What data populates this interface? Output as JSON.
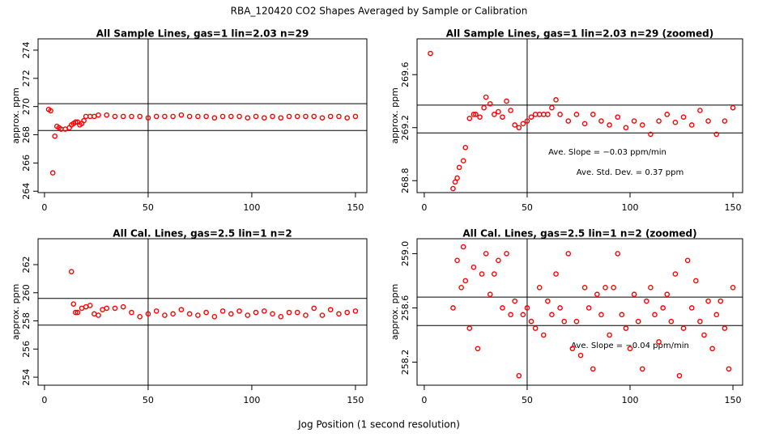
{
  "title": "RBA_120420  CO2 Shapes Averaged by Sample or Calibration",
  "x_label": "Jog Position (1 second resolution)",
  "chart_data": [
    {
      "type": "scatter",
      "title": "All Sample Lines, gas=1 lin=2.03 n=29",
      "y_label": "approx. ppm",
      "color": "#ff0000",
      "x": [
        2,
        3,
        4,
        5,
        6,
        7,
        8,
        10,
        12,
        13,
        14,
        15,
        16,
        17,
        18,
        19,
        20,
        22,
        24,
        26,
        30,
        34,
        38,
        42,
        46,
        50,
        54,
        58,
        62,
        66,
        70,
        74,
        78,
        82,
        86,
        90,
        94,
        98,
        102,
        106,
        110,
        114,
        118,
        122,
        126,
        130,
        134,
        138,
        142,
        146,
        150
      ],
      "values": [
        269.8,
        269.7,
        265.3,
        267.9,
        268.6,
        268.5,
        268.4,
        268.4,
        268.5,
        268.7,
        268.8,
        268.9,
        268.9,
        268.7,
        268.8,
        269.0,
        269.3,
        269.3,
        269.3,
        269.4,
        269.4,
        269.3,
        269.3,
        269.3,
        269.3,
        269.2,
        269.3,
        269.3,
        269.3,
        269.4,
        269.3,
        269.3,
        269.3,
        269.2,
        269.3,
        269.3,
        269.3,
        269.2,
        269.3,
        269.2,
        269.3,
        269.2,
        269.3,
        269.3,
        269.3,
        269.3,
        269.2,
        269.3,
        269.3,
        269.2,
        269.3
      ],
      "xlim": [
        -3.1,
        155.5
      ],
      "ylim": [
        263.9,
        274.8
      ],
      "xticks": [
        0,
        50,
        100,
        150
      ],
      "yticks": [
        264,
        266,
        268,
        270,
        272,
        274
      ],
      "hlines": [
        270.2,
        268.3
      ],
      "vlines": [
        50
      ]
    },
    {
      "type": "scatter",
      "title": "All Sample Lines, gas=1 lin=2.03 n=29 (zoomed)",
      "y_label": "approx. ppm",
      "color": "#ff0000",
      "x": [
        3,
        14,
        15,
        16,
        17,
        19,
        20,
        22,
        24,
        25,
        27,
        29,
        30,
        32,
        34,
        36,
        38,
        40,
        42,
        44,
        46,
        48,
        50,
        52,
        54,
        56,
        58,
        60,
        62,
        64,
        66,
        70,
        74,
        78,
        82,
        86,
        90,
        94,
        98,
        102,
        106,
        110,
        114,
        118,
        122,
        126,
        130,
        134,
        138,
        142,
        146,
        150
      ],
      "values": [
        269.76,
        268.74,
        268.79,
        268.82,
        268.9,
        268.95,
        269.05,
        269.27,
        269.3,
        269.3,
        269.28,
        269.35,
        269.43,
        269.38,
        269.3,
        269.32,
        269.28,
        269.4,
        269.33,
        269.22,
        269.2,
        269.23,
        269.25,
        269.28,
        269.3,
        269.3,
        269.3,
        269.3,
        269.35,
        269.41,
        269.3,
        269.25,
        269.3,
        269.23,
        269.3,
        269.25,
        269.22,
        269.28,
        269.2,
        269.25,
        269.22,
        269.15,
        269.25,
        269.3,
        269.24,
        269.28,
        269.22,
        269.33,
        269.25,
        269.15,
        269.25,
        269.35
      ],
      "xlim": [
        -3.5,
        154.7
      ],
      "ylim": [
        268.71,
        269.87
      ],
      "xticks": [
        0,
        50,
        100,
        150
      ],
      "yticks": [
        268.8,
        269.2,
        269.6
      ],
      "hlines": [
        269.37,
        269.16
      ],
      "vlines": [
        50
      ],
      "annotations": [
        "Ave. Slope =  −0.03  ppm/min",
        "Ave. Std. Dev. =  0.37  ppm"
      ]
    },
    {
      "type": "scatter",
      "title": "All Cal. Lines, gas=2.5 lin=1 n=2",
      "y_label": "approx. ppm",
      "color": "#ff0000",
      "x": [
        13,
        14,
        15,
        16,
        18,
        20,
        22,
        24,
        26,
        28,
        30,
        34,
        38,
        42,
        46,
        50,
        54,
        58,
        62,
        66,
        70,
        74,
        78,
        82,
        86,
        90,
        94,
        98,
        102,
        106,
        110,
        114,
        118,
        122,
        126,
        130,
        134,
        138,
        142,
        146,
        150
      ],
      "values": [
        261.5,
        259.2,
        258.6,
        258.6,
        258.9,
        259.0,
        259.1,
        258.5,
        258.4,
        258.8,
        258.9,
        258.9,
        259.0,
        258.6,
        258.3,
        258.5,
        258.7,
        258.4,
        258.5,
        258.8,
        258.5,
        258.4,
        258.6,
        258.3,
        258.7,
        258.5,
        258.7,
        258.4,
        258.6,
        258.7,
        258.5,
        258.3,
        258.6,
        258.6,
        258.4,
        258.9,
        258.4,
        258.8,
        258.5,
        258.6,
        258.7
      ],
      "xlim": [
        -3.1,
        155.5
      ],
      "ylim": [
        253.43,
        263.84
      ],
      "xticks": [
        0,
        50,
        100,
        150
      ],
      "yticks": [
        254,
        256,
        258,
        260,
        262
      ],
      "hlines": [
        259.6,
        257.7
      ],
      "vlines": [
        50
      ]
    },
    {
      "type": "scatter",
      "title": "All Cal. Lines, gas=2.5 lin=1 n=2 (zoomed)",
      "y_label": "approx. ppm",
      "color": "#ff0000",
      "x": [
        14,
        16,
        18,
        19,
        20,
        22,
        24,
        26,
        28,
        30,
        32,
        34,
        36,
        38,
        40,
        42,
        44,
        46,
        48,
        50,
        52,
        54,
        56,
        58,
        60,
        62,
        64,
        66,
        68,
        70,
        72,
        74,
        76,
        78,
        80,
        82,
        84,
        86,
        88,
        90,
        92,
        94,
        96,
        98,
        100,
        102,
        104,
        106,
        108,
        110,
        112,
        114,
        116,
        118,
        120,
        122,
        124,
        126,
        128,
        130,
        132,
        134,
        136,
        138,
        140,
        142,
        144,
        146,
        148,
        150
      ],
      "values": [
        258.6,
        258.95,
        258.75,
        259.05,
        258.8,
        258.45,
        258.9,
        258.3,
        258.85,
        259.0,
        258.7,
        258.85,
        258.95,
        258.6,
        259.0,
        258.55,
        258.65,
        258.1,
        258.55,
        258.6,
        258.5,
        258.45,
        258.75,
        258.4,
        258.65,
        258.55,
        258.85,
        258.6,
        258.5,
        259.0,
        258.3,
        258.5,
        258.25,
        258.75,
        258.6,
        258.15,
        258.7,
        258.55,
        258.75,
        258.4,
        258.75,
        259.0,
        258.55,
        258.45,
        258.3,
        258.7,
        258.5,
        258.15,
        258.65,
        258.75,
        258.55,
        258.35,
        258.6,
        258.7,
        258.5,
        258.85,
        258.1,
        258.45,
        258.95,
        258.6,
        258.8,
        258.5,
        258.4,
        258.65,
        258.3,
        258.55,
        258.65,
        258.45,
        258.15,
        258.75
      ],
      "xlim": [
        -3.5,
        154.7
      ],
      "ylim": [
        258.03,
        259.11
      ],
      "xticks": [
        0,
        50,
        100,
        150
      ],
      "yticks": [
        {
          "value": 258.2,
          "label": "258.2"
        },
        {
          "value": 258.6,
          "label": "258.6"
        },
        {
          "value": 259,
          "label": "259.0"
        }
      ],
      "hlines": [
        258.68,
        258.47
      ],
      "vlines": [
        50
      ],
      "annotations": [
        "Ave. Slope =  −0.04  ppm/min"
      ]
    }
  ]
}
